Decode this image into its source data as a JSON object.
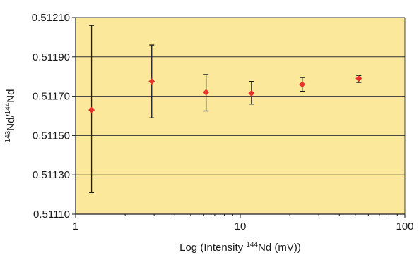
{
  "chart_data": {
    "type": "scatter",
    "xlabel": {
      "pre": "Log (Intensity ",
      "sup": "144",
      "post": "Nd (mV))"
    },
    "ylabel": {
      "sup1": "143",
      "mid": "Nd/",
      "sup2": "144",
      "post": "Nd"
    },
    "x_scale": "log",
    "xlim": [
      1,
      100
    ],
    "ylim": [
      0.5111,
      0.5121
    ],
    "x_ticks": [
      {
        "value": 1,
        "label": "1"
      },
      {
        "value": 10,
        "label": "10"
      },
      {
        "value": 100,
        "label": "100"
      }
    ],
    "y_ticks": [
      {
        "value": 0.5111,
        "label": "0.51110"
      },
      {
        "value": 0.5113,
        "label": "0.51130"
      },
      {
        "value": 0.5115,
        "label": "0.51150"
      },
      {
        "value": 0.5117,
        "label": "0.51170"
      },
      {
        "value": 0.5119,
        "label": "0.51190"
      },
      {
        "value": 0.5121,
        "label": "0.51210"
      }
    ],
    "grid": {
      "horizontal": true,
      "vertical": false
    },
    "points": [
      {
        "x": 1.25,
        "y": 0.51163,
        "y_low": 0.51121,
        "y_high": 0.51206
      },
      {
        "x": 2.9,
        "y": 0.511775,
        "y_low": 0.51159,
        "y_high": 0.51196
      },
      {
        "x": 6.2,
        "y": 0.51172,
        "y_low": 0.511625,
        "y_high": 0.51181
      },
      {
        "x": 11.7,
        "y": 0.511715,
        "y_low": 0.51166,
        "y_high": 0.511775
      },
      {
        "x": 23.8,
        "y": 0.51176,
        "y_low": 0.511725,
        "y_high": 0.511795
      },
      {
        "x": 52.5,
        "y": 0.51179,
        "y_low": 0.51177,
        "y_high": 0.511805
      }
    ],
    "colors": {
      "plot_background": "#fce89a",
      "gridline": "#333333",
      "point": "#e8322c",
      "error_bar": "#1a1a1a",
      "axis": "#1a1a1a"
    }
  }
}
